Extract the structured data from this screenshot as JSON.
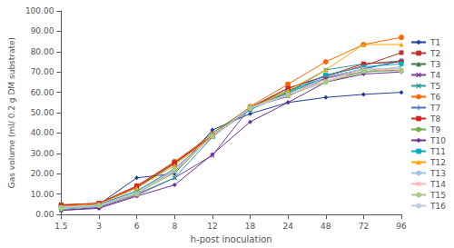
{
  "chart_data": {
    "type": "line",
    "xlabel": "h-post inoculation",
    "ylabel": "Gas volume (ml/ 0.2 g DM substrate)",
    "categories": [
      "1.5",
      "3",
      "6",
      "8",
      "12",
      "18",
      "24",
      "48",
      "72",
      "96"
    ],
    "series": [
      {
        "name": "T1",
        "color": "#1F3F99",
        "marker": "diamond",
        "values": [
          4.5,
          5.0,
          18.0,
          20.0,
          41.5,
          49.5,
          55.0,
          57.5,
          59.0,
          60.0
        ]
      },
      {
        "name": "T2",
        "color": "#BF3030",
        "marker": "square",
        "values": [
          4.8,
          5.5,
          13.5,
          25.0,
          38.5,
          52.5,
          62.0,
          68.0,
          73.0,
          79.5
        ]
      },
      {
        "name": "T3",
        "color": "#3D7A3D",
        "marker": "triangle",
        "values": [
          4.5,
          5.2,
          13.0,
          25.0,
          40.0,
          52.5,
          61.0,
          67.0,
          70.0,
          71.0
        ]
      },
      {
        "name": "T4",
        "color": "#7B3F99",
        "marker": "x",
        "values": [
          2.0,
          3.5,
          9.5,
          18.0,
          29.0,
          52.5,
          58.0,
          67.0,
          71.5,
          75.5
        ]
      },
      {
        "name": "T5",
        "color": "#2E9999",
        "marker": "x",
        "values": [
          2.5,
          4.0,
          10.0,
          18.0,
          38.0,
          52.5,
          60.0,
          71.0,
          74.0,
          75.5
        ]
      },
      {
        "name": "T6",
        "color": "#FF6600",
        "marker": "circle",
        "values": [
          4.5,
          5.5,
          14.0,
          26.0,
          39.0,
          53.0,
          64.0,
          75.0,
          83.5,
          87.0
        ]
      },
      {
        "name": "T7",
        "color": "#4472C4",
        "marker": "plus",
        "values": [
          4.0,
          5.0,
          11.5,
          22.5,
          38.5,
          51.5,
          59.5,
          67.5,
          71.5,
          75.5
        ]
      },
      {
        "name": "T8",
        "color": "#CC2222",
        "marker": "square",
        "values": [
          4.5,
          5.5,
          14.0,
          25.5,
          38.5,
          52.5,
          62.0,
          68.0,
          74.0,
          75.0
        ]
      },
      {
        "name": "T9",
        "color": "#70AD47",
        "marker": "none",
        "values": [
          3.5,
          4.5,
          10.5,
          20.5,
          38.5,
          52.5,
          60.5,
          65.0,
          70.0,
          72.5
        ]
      },
      {
        "name": "T10",
        "color": "#7030A0",
        "marker": "diamond",
        "values": [
          2.0,
          3.0,
          9.0,
          14.5,
          29.5,
          45.5,
          55.0,
          65.0,
          69.0,
          70.0
        ]
      },
      {
        "name": "T11",
        "color": "#00B0C0",
        "marker": "square",
        "values": [
          3.5,
          4.5,
          11.5,
          21.5,
          38.5,
          51.5,
          60.0,
          68.5,
          72.5,
          74.0
        ]
      },
      {
        "name": "T12",
        "color": "#FFA500",
        "marker": "triangle",
        "values": [
          4.0,
          5.2,
          13.0,
          24.0,
          38.5,
          52.0,
          61.0,
          71.0,
          83.5,
          83.5
        ]
      },
      {
        "name": "T13",
        "color": "#9DC3E6",
        "marker": "none",
        "values": [
          3.0,
          4.0,
          10.0,
          21.5,
          38.5,
          52.0,
          58.5,
          66.5,
          71.0,
          72.0
        ]
      },
      {
        "name": "T14",
        "color": "#FFB3B3",
        "marker": "x",
        "values": [
          3.5,
          4.5,
          10.5,
          21.0,
          38.5,
          52.5,
          59.0,
          65.5,
          71.5,
          71.0
        ]
      },
      {
        "name": "T15",
        "color": "#A9C880",
        "marker": "circle",
        "values": [
          3.0,
          4.5,
          10.0,
          22.0,
          38.5,
          52.5,
          58.5,
          65.0,
          70.5,
          70.5
        ]
      },
      {
        "name": "T16",
        "color": "#BFC9E0",
        "marker": "none",
        "values": [
          3.5,
          4.5,
          11.0,
          22.0,
          38.5,
          52.5,
          58.5,
          67.5,
          71.5,
          72.0
        ]
      }
    ],
    "ylim": [
      0,
      100
    ],
    "yticks": [
      {
        "value": 0,
        "label": "0.00"
      },
      {
        "value": 10,
        "label": "10.00"
      },
      {
        "value": 20,
        "label": "20.00"
      },
      {
        "value": 30,
        "label": "30.00"
      },
      {
        "value": 40,
        "label": "40.00"
      },
      {
        "value": 50,
        "label": "50.00"
      },
      {
        "value": 60,
        "label": "60.00"
      },
      {
        "value": 70,
        "label": "70.00"
      },
      {
        "value": 80,
        "label": "80.00"
      },
      {
        "value": 90,
        "label": "90.00"
      },
      {
        "value": 100,
        "label": "100.00"
      }
    ],
    "grid": false,
    "legend": "right"
  }
}
